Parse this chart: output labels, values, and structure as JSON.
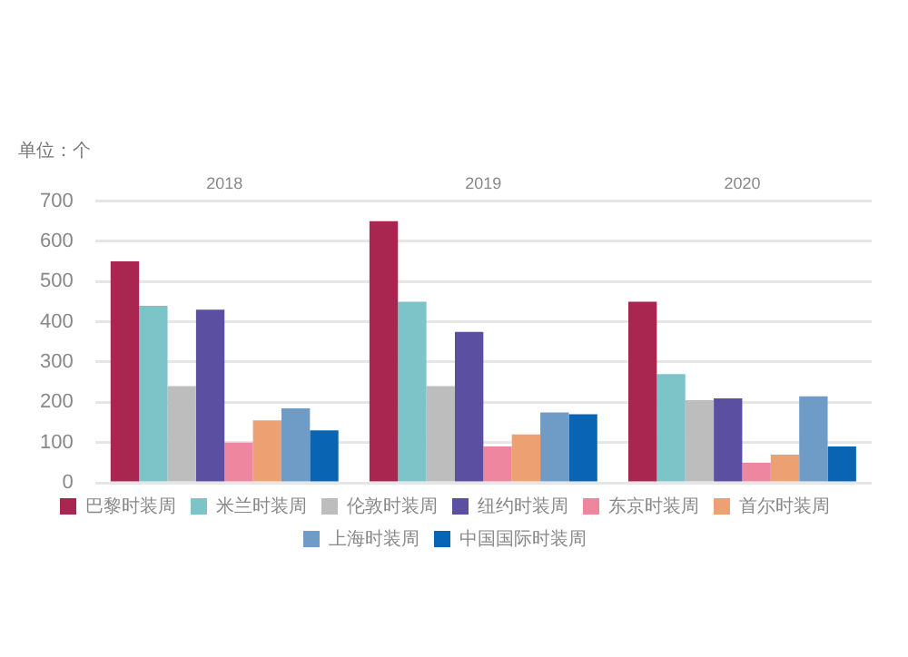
{
  "chart_data": {
    "type": "bar",
    "ylabel": "单位：个",
    "categories": [
      "2018",
      "2019",
      "2020"
    ],
    "series": [
      {
        "name": "巴黎时装周",
        "color": "#a8264f",
        "values": [
          550,
          650,
          450
        ]
      },
      {
        "name": "米兰时装周",
        "color": "#7cc4c8",
        "values": [
          440,
          450,
          270
        ]
      },
      {
        "name": "伦敦时装周",
        "color": "#bdbdbd",
        "values": [
          240,
          240,
          205
        ]
      },
      {
        "name": "纽约时装周",
        "color": "#5a4fa0",
        "values": [
          430,
          375,
          210
        ]
      },
      {
        "name": "东京时装周",
        "color": "#ee86a0",
        "values": [
          100,
          90,
          50
        ]
      },
      {
        "name": "首尔时装周",
        "color": "#eda072",
        "values": [
          155,
          120,
          70
        ]
      },
      {
        "name": "上海时装周",
        "color": "#6f9cc6",
        "values": [
          185,
          175,
          215
        ]
      },
      {
        "name": "中国国际时装周",
        "color": "#0a64b4",
        "values": [
          130,
          170,
          90
        ]
      }
    ],
    "ylim": [
      0,
      700
    ],
    "yticks": [
      0,
      100,
      200,
      300,
      400,
      500,
      600,
      700
    ],
    "grid": "y",
    "legend": "bottom"
  }
}
